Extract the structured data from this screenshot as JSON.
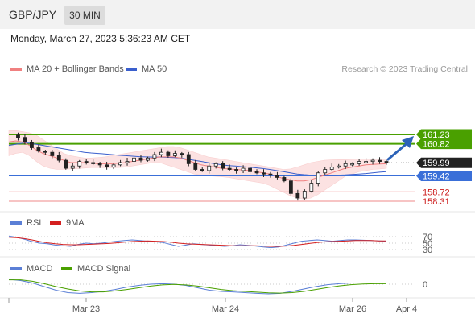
{
  "header": {
    "symbol": "GBP/JPY",
    "timeframe": "30 MIN",
    "datetime": "Monday, March 27, 2023 5:36:23 AM CET",
    "credit": "Research © 2023 Trading Central"
  },
  "legend": {
    "ma20": "MA 20 + Bollinger Bands",
    "ma50": "MA 50",
    "rsi": "RSI",
    "rsi_ma": "9MA",
    "macd": "MACD",
    "macd_signal": "MACD Signal"
  },
  "colors": {
    "ma20": "#f08080",
    "ma50": "#3a5fcd",
    "bollinger_fill": "#fcdede",
    "resistance": "#4aa000",
    "support": "#f2a0a0",
    "pivot": "#3a6fd8",
    "current": "#222222",
    "arrow": "#2c63b8",
    "rsi": "#5b7fd6",
    "rsi_ma": "#d42020",
    "macd": "#5b7fd6",
    "macd_signal": "#4aa000",
    "label_support": "#cc1a1a"
  },
  "chart_data": [
    {
      "type": "line",
      "title": "GBP/JPY",
      "x_tick_labels": [
        "Mar 23",
        "Mar 24",
        "Mar 26",
        "Apr 4"
      ],
      "ylim": [
        158.2,
        161.8
      ],
      "series": [
        {
          "name": "GBP/JPY",
          "kind": "price",
          "values": [
            161.2,
            161.1,
            160.9,
            160.65,
            160.5,
            160.45,
            160.3,
            160.1,
            159.75,
            159.85,
            160.05,
            160.0,
            159.95,
            159.9,
            159.8,
            159.9,
            160.0,
            160.05,
            160.2,
            160.1,
            160.2,
            160.35,
            160.45,
            160.3,
            160.4,
            160.35,
            159.95,
            159.7,
            159.65,
            159.85,
            159.95,
            159.75,
            159.7,
            159.65,
            159.75,
            159.6,
            159.55,
            159.5,
            159.45,
            159.35,
            159.2,
            158.65,
            158.45,
            158.75,
            159.1,
            159.55,
            159.7,
            159.8,
            159.85,
            159.95,
            159.95,
            160.05,
            160.05,
            160.1,
            160.05,
            159.99
          ]
        },
        {
          "name": "MA 20",
          "values": [
            160.9,
            160.95,
            160.9,
            160.75,
            160.55,
            160.4,
            160.3,
            160.2,
            160.1,
            160.0,
            160.0,
            160.0,
            159.98,
            159.95,
            159.95,
            159.95,
            159.97,
            160.0,
            160.05,
            160.1,
            160.15,
            160.2,
            160.25,
            160.25,
            160.25,
            160.2,
            160.1,
            160.0,
            159.9,
            159.85,
            159.8,
            159.75,
            159.72,
            159.7,
            159.68,
            159.65,
            159.6,
            159.55,
            159.5,
            159.4,
            159.3,
            159.25,
            159.2,
            159.2,
            159.25,
            159.35,
            159.45,
            159.55,
            159.65,
            159.75,
            159.8,
            159.85,
            159.9,
            159.92,
            159.94,
            159.95
          ]
        },
        {
          "name": "MA 50",
          "values": [
            160.75,
            160.8,
            160.85,
            160.85,
            160.8,
            160.75,
            160.7,
            160.65,
            160.6,
            160.55,
            160.5,
            160.45,
            160.42,
            160.4,
            160.38,
            160.35,
            160.32,
            160.3,
            160.28,
            160.26,
            160.25,
            160.24,
            160.24,
            160.23,
            160.22,
            160.2,
            160.15,
            160.1,
            160.05,
            160.0,
            159.95,
            159.9,
            159.87,
            159.85,
            159.82,
            159.8,
            159.77,
            159.74,
            159.7,
            159.65,
            159.6,
            159.55,
            159.5,
            159.47,
            159.45,
            159.44,
            159.44,
            159.44,
            159.45,
            159.46,
            159.48,
            159.5,
            159.52,
            159.55,
            159.58,
            159.6
          ]
        },
        {
          "name": "Bollinger Upper",
          "values": [
            161.4,
            161.4,
            161.35,
            161.3,
            161.2,
            161.0,
            160.8,
            160.6,
            160.4,
            160.3,
            160.25,
            160.2,
            160.2,
            160.22,
            160.25,
            160.3,
            160.35,
            160.4,
            160.45,
            160.5,
            160.55,
            160.6,
            160.65,
            160.7,
            160.7,
            160.65,
            160.55,
            160.45,
            160.35,
            160.25,
            160.2,
            160.15,
            160.1,
            160.05,
            160.0,
            159.95,
            159.9,
            159.85,
            159.8,
            159.75,
            159.7,
            159.72,
            159.8,
            159.9,
            160.0,
            160.05,
            160.1,
            160.12,
            160.13,
            160.13,
            160.14,
            160.15,
            160.15,
            160.15,
            160.15,
            160.15
          ]
        },
        {
          "name": "Bollinger Lower",
          "values": [
            160.3,
            160.4,
            160.45,
            160.3,
            160.05,
            159.85,
            159.75,
            159.7,
            159.7,
            159.72,
            159.74,
            159.76,
            159.78,
            159.78,
            159.78,
            159.78,
            159.78,
            159.8,
            159.85,
            159.9,
            159.95,
            160.0,
            160.0,
            159.9,
            159.8,
            159.7,
            159.6,
            159.5,
            159.45,
            159.42,
            159.4,
            159.38,
            159.35,
            159.3,
            159.25,
            159.2,
            159.15,
            159.1,
            159.0,
            158.85,
            158.7,
            158.55,
            158.45,
            158.4,
            158.45,
            158.6,
            158.8,
            159.0,
            159.2,
            159.4,
            159.5,
            159.6,
            159.65,
            159.7,
            159.72,
            159.75
          ]
        }
      ],
      "levels": [
        {
          "label": "161.23",
          "value": 161.23,
          "kind": "resistance"
        },
        {
          "label": "160.82",
          "value": 160.82,
          "kind": "resistance"
        },
        {
          "label": "159.99",
          "value": 159.99,
          "kind": "current"
        },
        {
          "label": "159.42",
          "value": 159.42,
          "kind": "pivot"
        },
        {
          "label": "158.72",
          "value": 158.72,
          "kind": "support"
        },
        {
          "label": "158.31",
          "value": 158.31,
          "kind": "support"
        }
      ]
    },
    {
      "type": "line",
      "title": "RSI",
      "y_tick_labels": [
        "70",
        "50",
        "30"
      ],
      "ylim": [
        15,
        85
      ],
      "series": [
        {
          "name": "RSI",
          "values": [
            72,
            68,
            62,
            55,
            50,
            48,
            44,
            42,
            40,
            46,
            50,
            48,
            50,
            53,
            56,
            58,
            60,
            58,
            56,
            54,
            52,
            46,
            40,
            44,
            48,
            46,
            44,
            42,
            40,
            42,
            45,
            43,
            41,
            38,
            36,
            38,
            44,
            50,
            56,
            58,
            60,
            58,
            56,
            58,
            60,
            60,
            59,
            58,
            57,
            56
          ]
        },
        {
          "name": "9MA",
          "values": [
            68,
            67,
            64,
            60,
            55,
            51,
            48,
            46,
            45,
            45,
            46,
            47,
            48,
            49,
            51,
            53,
            55,
            56,
            57,
            56,
            55,
            53,
            50,
            48,
            47,
            46,
            45,
            44,
            43,
            42,
            42,
            42,
            42,
            41,
            40,
            40,
            41,
            43,
            46,
            49,
            52,
            54,
            55,
            56,
            57,
            58,
            58,
            58,
            57,
            57
          ]
        }
      ]
    },
    {
      "type": "line",
      "title": "MACD",
      "y_tick_labels": [
        "0"
      ],
      "ylim": [
        -0.5,
        0.3
      ],
      "series": [
        {
          "name": "MACD",
          "values": [
            0.2,
            0.15,
            0.05,
            -0.1,
            -0.25,
            -0.35,
            -0.38,
            -0.35,
            -0.3,
            -0.22,
            -0.12,
            -0.05,
            0.0,
            0.02,
            0.0,
            -0.05,
            -0.15,
            -0.25,
            -0.3,
            -0.32,
            -0.35,
            -0.38,
            -0.4,
            -0.38,
            -0.3,
            -0.2,
            -0.1,
            -0.02,
            0.02,
            0.05,
            0.05,
            0.04,
            0.03
          ]
        },
        {
          "name": "MACD Signal",
          "values": [
            0.18,
            0.18,
            0.12,
            0.02,
            -0.1,
            -0.2,
            -0.28,
            -0.32,
            -0.32,
            -0.28,
            -0.22,
            -0.15,
            -0.08,
            -0.03,
            -0.01,
            -0.03,
            -0.08,
            -0.15,
            -0.22,
            -0.27,
            -0.3,
            -0.33,
            -0.36,
            -0.37,
            -0.35,
            -0.3,
            -0.22,
            -0.14,
            -0.07,
            -0.02,
            0.01,
            0.02,
            0.02
          ]
        }
      ]
    }
  ]
}
